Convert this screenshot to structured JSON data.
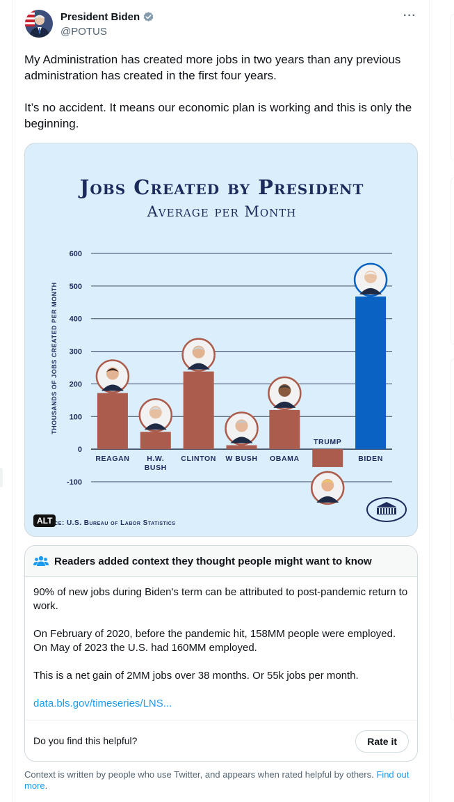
{
  "tweet": {
    "author_name": "President Biden",
    "handle": "@POTUS",
    "more_label": "···",
    "paragraphs": [
      "My Administration has created more jobs in two years than any previous administration has created in the first four years.",
      "It’s no accident. It means our economic plan is working and this is only the beginning."
    ]
  },
  "media": {
    "alt_badge": "ALT",
    "source": "Source: U.S. Bureau of Labor Statistics"
  },
  "chart_data": {
    "type": "bar",
    "title": "Jobs Created by President",
    "subtitle": "Average per Month",
    "ylabel": "Thousands of Jobs Created per Month",
    "xlabel": "",
    "ylim": [
      -100,
      600
    ],
    "yticks": [
      600,
      500,
      400,
      300,
      200,
      100,
      0,
      -100
    ],
    "categories": [
      "REAGAN",
      "H.W. BUSH",
      "CLINTON",
      "W BUSH",
      "OBAMA",
      "TRUMP",
      "BIDEN"
    ],
    "values": [
      172,
      53,
      238,
      12,
      120,
      -55,
      468
    ],
    "colors": [
      "#ab5c4c",
      "#ab5c4c",
      "#ab5c4c",
      "#ab5c4c",
      "#ab5c4c",
      "#ab5c4c",
      "#0a63c2"
    ],
    "gridlines": true
  },
  "community_note": {
    "header": "Readers added context they thought people might want to know",
    "paragraphs": [
      "90% of new jobs during Biden's term can be attributed to post-pandemic return to work.",
      "On February of 2020, before the pandemic hit, 158MM people were employed. On May of 2023 the U.S. had 160MM employed.",
      "This is a net gain of 2MM jobs over 38 months. Or 55k jobs per month."
    ],
    "link": "data.bls.gov/timeseries/LNS...",
    "helpful_question": "Do you find this helpful?",
    "rate_button": "Rate it"
  },
  "disclaimer": {
    "text": "Context is written by people who use Twitter, and appears when rated helpful by others.",
    "link": "Find out more",
    "period": "."
  },
  "colors": {
    "accent": "#1d9bf0",
    "verified": "#829aab",
    "bar_default": "#ab5c4c",
    "bar_highlight": "#0a63c2",
    "chart_bg": "#dbeefb"
  }
}
